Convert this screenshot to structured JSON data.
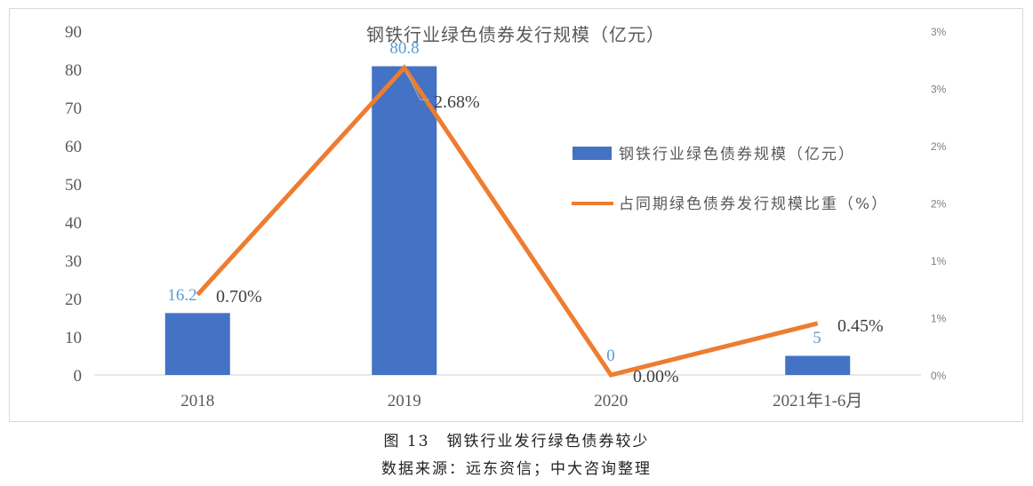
{
  "chart_data": {
    "type": "bar+line",
    "title": "钢铁行业绿色债券发行规模（亿元）",
    "categories": [
      "2018",
      "2019",
      "2020",
      "2021年1-6月"
    ],
    "series": [
      {
        "name": "钢铁行业绿色债券规模（亿元）",
        "type": "bar",
        "axis": "left",
        "color": "#4472c4",
        "values": [
          16.2,
          80.8,
          0,
          5
        ],
        "labels": [
          "16.2",
          "80.8",
          "0",
          "5"
        ]
      },
      {
        "name": "占同期绿色债券发行规模比重（%）",
        "type": "line",
        "axis": "right",
        "color": "#ed7d31",
        "values": [
          0.7,
          2.68,
          0.0,
          0.45
        ],
        "labels": [
          "0.70%",
          "2.68%",
          "0.00%",
          "0.45%"
        ]
      }
    ],
    "y_left": {
      "ylim": [
        0,
        90
      ],
      "ticks": [
        "0",
        "10",
        "20",
        "30",
        "40",
        "50",
        "60",
        "70",
        "80",
        "90"
      ]
    },
    "y_right": {
      "ylim": [
        0,
        3
      ],
      "ticks": [
        "0%",
        "1%",
        "1%",
        "2%",
        "2%",
        "3%",
        "3%"
      ]
    },
    "xlabel": "",
    "ylabel": "",
    "legend_position": "right-inside",
    "grid": false
  },
  "caption": {
    "figure": "图 13　钢铁行业发行绿色债券较少",
    "source": "数据来源：远东资信；中大咨询整理"
  }
}
